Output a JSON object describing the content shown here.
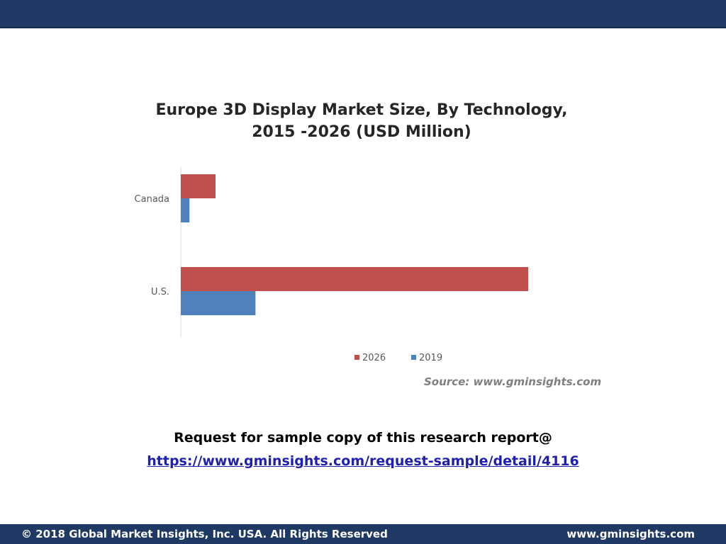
{
  "header": {},
  "chart_data": {
    "type": "bar",
    "orientation": "horizontal",
    "title": "Europe 3D Display Market Size, By Technology, 2015 -2026 (USD Million)",
    "title_lines": [
      "Europe 3D Display Market Size, By Technology,",
      "2015 -2026 (USD Million)"
    ],
    "categories": [
      "Canada",
      "U.S."
    ],
    "series": [
      {
        "name": "2026",
        "values": [
          100,
          1000
        ],
        "color": "#c0504d"
      },
      {
        "name": "2019",
        "values": [
          25,
          215
        ],
        "color": "#4f81bd"
      }
    ],
    "xlim": [
      0,
      1000
    ],
    "grid": false,
    "legend_position": "bottom",
    "source": "Source: www.gminsights.com"
  },
  "cta": {
    "text": "Request for sample copy of this research report@",
    "link": "https://www.gminsights.com/request-sample/detail/4116"
  },
  "footer": {
    "copyright": "© 2018 Global Market Insights, Inc. USA. All Rights Reserved",
    "website": "www.gminsights.com"
  }
}
